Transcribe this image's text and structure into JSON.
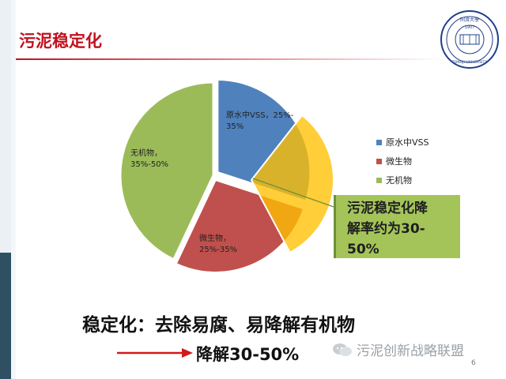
{
  "slide": {
    "title": "污泥稳定化",
    "page_number": "6",
    "callout": {
      "line1": "污泥稳定化降",
      "line2": "解率约为30-",
      "line3": "50%"
    },
    "summary": "稳定化：去除易腐、易降解有机物",
    "result": "降解30-50%",
    "watermark": "污泥创新战略联盟"
  },
  "logo": {
    "year_text": "1907",
    "name_text": "TONGJI UNIVERSITY",
    "chars_text": "同濟大學"
  },
  "chart_data": {
    "type": "pie",
    "slices": [
      {
        "name": "原水中VSS",
        "label_line1": "原水中VSS，25%-",
        "label_line2": "35%",
        "value": 30,
        "color": "#4f81bd"
      },
      {
        "name": "微生物",
        "label_line1": "微生物，",
        "label_line2": "25%-35%",
        "value": 27,
        "color": "#c0504d"
      },
      {
        "name": "无机物",
        "label_line1": "无机物，",
        "label_line2": "35%-50%",
        "value": 43,
        "color": "#9bbb59"
      }
    ],
    "legend": [
      "原水中VSS",
      "微生物",
      "无机物"
    ],
    "legend_placement": "right",
    "overlay_color": "#ffc000"
  },
  "colors": {
    "title": "#c0121e",
    "callout_bg": "#a4c45a",
    "arrow": "#d11a1a"
  }
}
